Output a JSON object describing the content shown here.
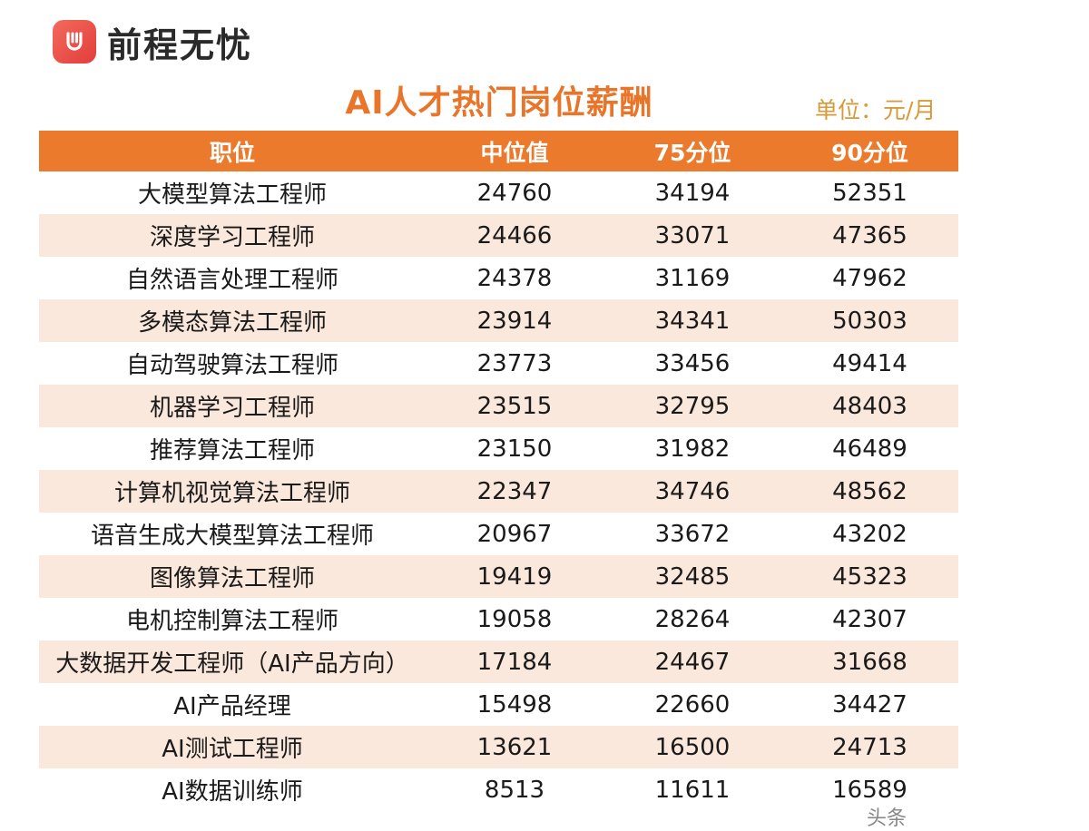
{
  "brand": {
    "name": "前程无忧",
    "logo_icon": "hand-logo-icon",
    "color": "#e84a3f"
  },
  "title": "AI人才热门岗位薪酬",
  "unit": "单位：元/月",
  "table": {
    "headers": [
      "职位",
      "中位值",
      "75分位",
      "90分位"
    ],
    "rows": [
      [
        "大模型算法工程师",
        "24760",
        "34194",
        "52351"
      ],
      [
        "深度学习工程师",
        "24466",
        "33071",
        "47365"
      ],
      [
        "自然语言处理工程师",
        "24378",
        "31169",
        "47962"
      ],
      [
        "多模态算法工程师",
        "23914",
        "34341",
        "50303"
      ],
      [
        "自动驾驶算法工程师",
        "23773",
        "33456",
        "49414"
      ],
      [
        "机器学习工程师",
        "23515",
        "32795",
        "48403"
      ],
      [
        "推荐算法工程师",
        "23150",
        "31982",
        "46489"
      ],
      [
        "计算机视觉算法工程师",
        "22347",
        "34746",
        "48562"
      ],
      [
        "语音生成大模型算法工程师",
        "20967",
        "33672",
        "43202"
      ],
      [
        "图像算法工程师",
        "19419",
        "32485",
        "45323"
      ],
      [
        "电机控制算法工程师",
        "19058",
        "28264",
        "42307"
      ],
      [
        "大数据开发工程师（AI产品方向）",
        "17184",
        "24467",
        "31668"
      ],
      [
        "AI产品经理",
        "15498",
        "22660",
        "34427"
      ],
      [
        "AI测试工程师",
        "13621",
        "16500",
        "24713"
      ],
      [
        "AI数据训练师",
        "8513",
        "11611",
        "16589"
      ]
    ]
  },
  "watermark": "头条"
}
